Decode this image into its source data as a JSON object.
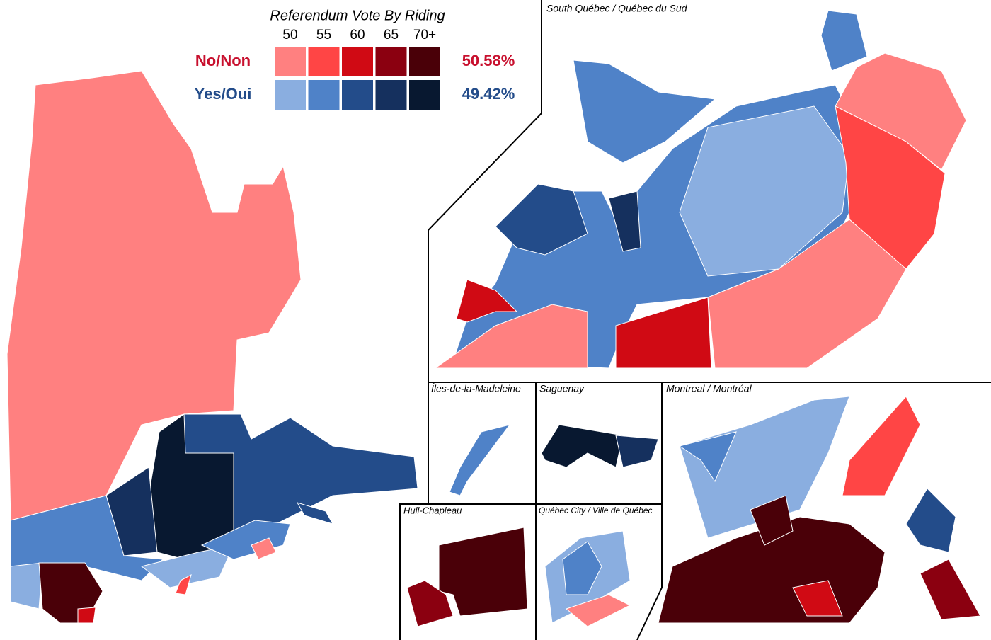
{
  "title": "Referendum Vote By Riding",
  "legend": {
    "thresholds": [
      "50",
      "55",
      "60",
      "65",
      "70+"
    ],
    "rows": [
      {
        "label": "No/Non",
        "share": "50.58%",
        "text_color": "#c8102e",
        "colors": [
          "#ff8080",
          "#ff4545",
          "#d00a14",
          "#8b0010",
          "#4a0008"
        ]
      },
      {
        "label": "Yes/Oui",
        "share": "49.42%",
        "text_color": "#234c8a",
        "colors": [
          "#8aaee0",
          "#4f82c8",
          "#234c8a",
          "#15305e",
          "#081830"
        ]
      }
    ]
  },
  "insets": {
    "south": "South Québec / Québec du Sud",
    "iles": "Îles-de-la-Madeleine",
    "saguenay": "Saguenay",
    "montreal": "Montreal / Montréal",
    "hull": "Hull-Chapleau",
    "quebec_city": "Québec City / Ville de Québec"
  }
}
